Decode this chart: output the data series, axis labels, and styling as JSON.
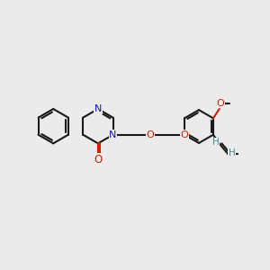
{
  "bg_color": "#ebebeb",
  "bond_color": "#1a1a1a",
  "bond_width": 1.5,
  "N_color": "#1414cc",
  "O_color": "#cc2200",
  "propenyl_color": "#4a9090",
  "figsize": [
    3.0,
    3.0
  ],
  "dpi": 100,
  "xlim": [
    0,
    12
  ],
  "ylim": [
    0,
    12
  ]
}
